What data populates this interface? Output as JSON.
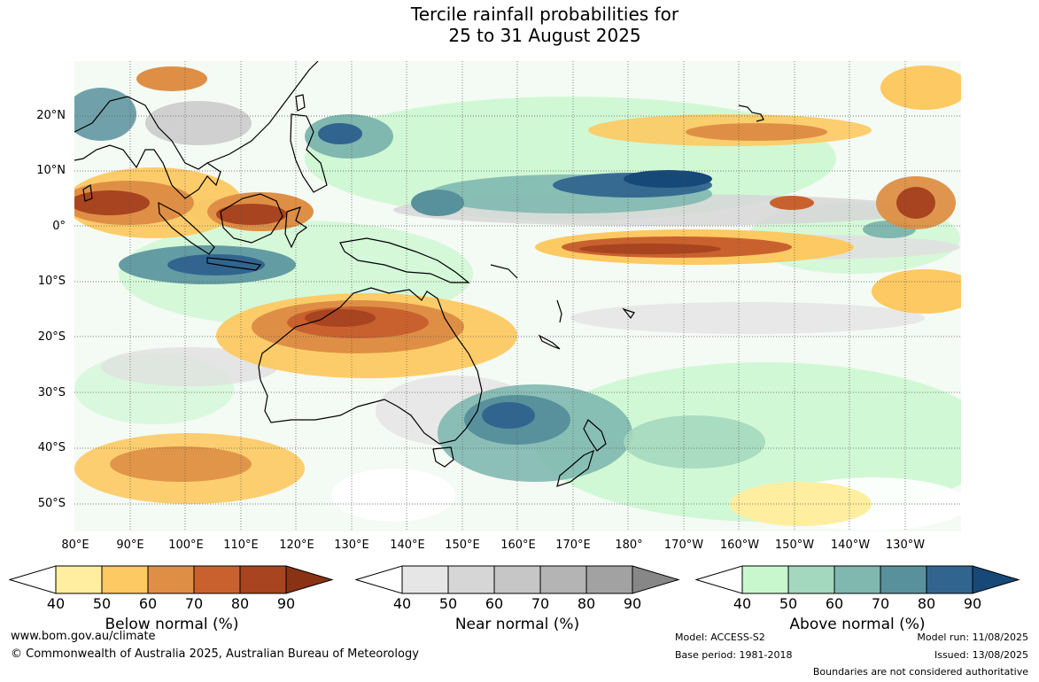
{
  "title": {
    "line1": "Tercile rainfall probabilities for",
    "line2": "25 to 31 August 2025"
  },
  "map": {
    "lat_ticks": [
      "20°N",
      "10°N",
      "0°",
      "10°S",
      "20°S",
      "30°S",
      "40°S",
      "50°S"
    ],
    "lon_ticks": [
      "80°E",
      "90°E",
      "100°E",
      "110°E",
      "120°E",
      "130°E",
      "140°E",
      "150°E",
      "160°E",
      "170°E",
      "180°",
      "170°W",
      "160°W",
      "150°W",
      "140°W",
      "130°W"
    ]
  },
  "legends": [
    {
      "caption": "Below normal (%)",
      "ticks": [
        "40",
        "50",
        "60",
        "70",
        "80",
        "90"
      ],
      "colors": [
        "#ffeea0",
        "#fdc962",
        "#de8f45",
        "#c9612f",
        "#a8441f",
        "#8a3214"
      ]
    },
    {
      "caption": "Near normal (%)",
      "ticks": [
        "40",
        "50",
        "60",
        "70",
        "80",
        "90"
      ],
      "colors": [
        "#e6e6e6",
        "#d6d6d6",
        "#c6c6c6",
        "#b4b4b4",
        "#a2a2a2",
        "#878787"
      ]
    },
    {
      "caption": "Above normal (%)",
      "ticks": [
        "40",
        "50",
        "60",
        "70",
        "80",
        "90"
      ],
      "colors": [
        "#c8f7cd",
        "#a4d8be",
        "#80b8b0",
        "#58919c",
        "#31658f",
        "#164978"
      ]
    }
  ],
  "footer": {
    "url": "www.bom.gov.au/climate",
    "copyright": "© Commonwealth of Australia 2025, Australian Bureau of Meteorology",
    "model": "Model: ACCESS-S2",
    "base_period": "Base period: 1981-2018",
    "model_run": "Model run: 11/08/2025",
    "issued": "Issued: 13/08/2025",
    "disclaimer": "Boundaries are not considered authoritative"
  }
}
